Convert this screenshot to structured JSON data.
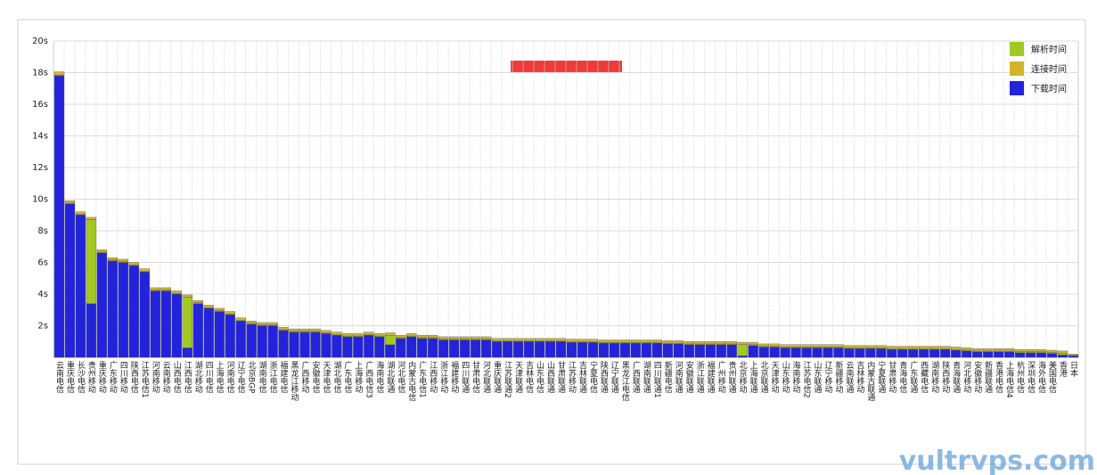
{
  "chart_data": {
    "type": "stacked-bar",
    "categories": [
      "云南电信",
      "重庆电信",
      "长沙电信",
      "贵州移动",
      "重庆移动",
      "广东移动",
      "四川移动",
      "陕西电信",
      "江苏电信1",
      "河南移动",
      "云南移动",
      "山西电信",
      "江西电信",
      "湖北移动",
      "四川电信",
      "上海电信",
      "河南电信",
      "辽宁电信",
      "北京BGP",
      "湖南电信",
      "浙江电信",
      "福建电信",
      "黑龙江移动",
      "广西移动",
      "安徽电信",
      "天津电信",
      "湖北电信",
      "广东电信",
      "上海移动",
      "广西电信3",
      "海南电信",
      "湖北联通",
      "河北电信",
      "内蒙古电信",
      "广东电信1",
      "江西移动",
      "浙江移动",
      "福建移动",
      "四川联通",
      "甘肃电信",
      "河北联通",
      "重庆联通",
      "江苏联通2",
      "天津联通",
      "吉林电信",
      "山东电信",
      "山西联通",
      "甘肃联通",
      "江苏移动",
      "吉林联通",
      "宁夏电信",
      "陕西联通",
      "辽宁联通",
      "黑龙江电信",
      "广西联通",
      "湖南联通",
      "四川联通1",
      "新疆电信",
      "河南联通",
      "安徽联通",
      "浙江联通",
      "福建联通",
      "广州移动",
      "贵州联通",
      "北京移动",
      "上海联通",
      "北京联通",
      "天津移动",
      "山东移动",
      "海南移动",
      "江苏电信2",
      "山东联通",
      "辽宁移动",
      "新疆移动",
      "云南联通",
      "吉林移动",
      "内蒙古联通",
      "宁夏联通",
      "甘肃移动",
      "青海电信",
      "广东联通",
      "西藏电信",
      "湖南移动",
      "陕西移动",
      "青海联通",
      "河北移动",
      "安徽移动",
      "新疆联通",
      "香港电信",
      "上海电信4",
      "杭州电信",
      "深圳电信",
      "海外电信",
      "美国电信",
      "香港",
      "日本"
    ],
    "series": [
      {
        "name": "下载时间",
        "color": "#2323dc",
        "values": [
          17.8,
          9.7,
          9.0,
          3.4,
          6.6,
          6.1,
          6.0,
          5.8,
          5.4,
          4.2,
          4.2,
          4.0,
          0.6,
          3.4,
          3.1,
          2.9,
          2.7,
          2.3,
          2.1,
          2.0,
          2.0,
          1.7,
          1.6,
          1.6,
          1.6,
          1.5,
          1.4,
          1.3,
          1.3,
          1.4,
          1.3,
          0.8,
          1.2,
          1.3,
          1.2,
          1.2,
          1.1,
          1.1,
          1.1,
          1.1,
          1.1,
          1.0,
          1.0,
          1.0,
          1.0,
          1.0,
          1.0,
          1.0,
          0.95,
          0.95,
          0.95,
          0.9,
          0.9,
          0.9,
          0.9,
          0.9,
          0.9,
          0.85,
          0.85,
          0.8,
          0.8,
          0.8,
          0.8,
          0.8,
          0.1,
          0.75,
          0.65,
          0.65,
          0.6,
          0.6,
          0.6,
          0.6,
          0.6,
          0.6,
          0.55,
          0.55,
          0.55,
          0.55,
          0.5,
          0.5,
          0.5,
          0.5,
          0.5,
          0.5,
          0.45,
          0.4,
          0.35,
          0.35,
          0.35,
          0.35,
          0.3,
          0.3,
          0.3,
          0.25,
          0.15,
          0.1
        ]
      },
      {
        "name": "解析时间",
        "color": "#a2c822",
        "values": [
          0.05,
          0.05,
          0.05,
          5.3,
          0.05,
          0.05,
          0.05,
          0.05,
          0.05,
          0.05,
          0.05,
          0.05,
          3.2,
          0.05,
          0.05,
          0.05,
          0.05,
          0.05,
          0.05,
          0.05,
          0.05,
          0.05,
          0.05,
          0.05,
          0.05,
          0.05,
          0.05,
          0.05,
          0.05,
          0.05,
          0.05,
          0.6,
          0.05,
          0.05,
          0.05,
          0.05,
          0.05,
          0.05,
          0.05,
          0.05,
          0.05,
          0.05,
          0.05,
          0.05,
          0.05,
          0.05,
          0.05,
          0.05,
          0.05,
          0.05,
          0.05,
          0.05,
          0.05,
          0.05,
          0.05,
          0.05,
          0.05,
          0.05,
          0.05,
          0.05,
          0.05,
          0.05,
          0.05,
          0.05,
          0.7,
          0.05,
          0.05,
          0.05,
          0.05,
          0.05,
          0.05,
          0.05,
          0.05,
          0.05,
          0.05,
          0.05,
          0.05,
          0.05,
          0.05,
          0.05,
          0.05,
          0.05,
          0.05,
          0.05,
          0.05,
          0.05,
          0.05,
          0.05,
          0.05,
          0.05,
          0.05,
          0.05,
          0.05,
          0.05,
          0.1,
          0.05
        ]
      },
      {
        "name": "连接时间",
        "color": "#d4b428",
        "values": [
          0.2,
          0.15,
          0.15,
          0.15,
          0.15,
          0.15,
          0.15,
          0.15,
          0.15,
          0.15,
          0.15,
          0.15,
          0.15,
          0.15,
          0.15,
          0.15,
          0.15,
          0.15,
          0.15,
          0.15,
          0.15,
          0.15,
          0.15,
          0.15,
          0.15,
          0.15,
          0.15,
          0.15,
          0.15,
          0.15,
          0.15,
          0.15,
          0.15,
          0.15,
          0.15,
          0.15,
          0.15,
          0.15,
          0.15,
          0.15,
          0.15,
          0.15,
          0.15,
          0.15,
          0.15,
          0.15,
          0.15,
          0.15,
          0.15,
          0.15,
          0.15,
          0.15,
          0.15,
          0.15,
          0.15,
          0.15,
          0.15,
          0.15,
          0.15,
          0.15,
          0.15,
          0.15,
          0.15,
          0.15,
          0.15,
          0.15,
          0.15,
          0.15,
          0.15,
          0.15,
          0.15,
          0.15,
          0.15,
          0.15,
          0.15,
          0.15,
          0.15,
          0.15,
          0.15,
          0.15,
          0.15,
          0.15,
          0.15,
          0.15,
          0.15,
          0.15,
          0.15,
          0.15,
          0.15,
          0.15,
          0.15,
          0.15,
          0.15,
          0.15,
          0.15,
          0.05
        ]
      }
    ],
    "legend_order": [
      "解析时间",
      "连接时间",
      "下载时间"
    ],
    "ylim": [
      0,
      20
    ],
    "yticks": [
      {
        "value": 2,
        "label": "2s"
      },
      {
        "value": 4,
        "label": "4s"
      },
      {
        "value": 6,
        "label": "6s"
      },
      {
        "value": 8,
        "label": "8s"
      },
      {
        "value": 10,
        "label": "10s"
      },
      {
        "value": 12,
        "label": "12s"
      },
      {
        "value": 14,
        "label": "14s"
      },
      {
        "value": 16,
        "label": "16s"
      },
      {
        "value": 18,
        "label": "18s"
      },
      {
        "value": 20,
        "label": "20s"
      }
    ],
    "grid": true,
    "legend": "upper right",
    "watermark": "vultrvps.com"
  }
}
